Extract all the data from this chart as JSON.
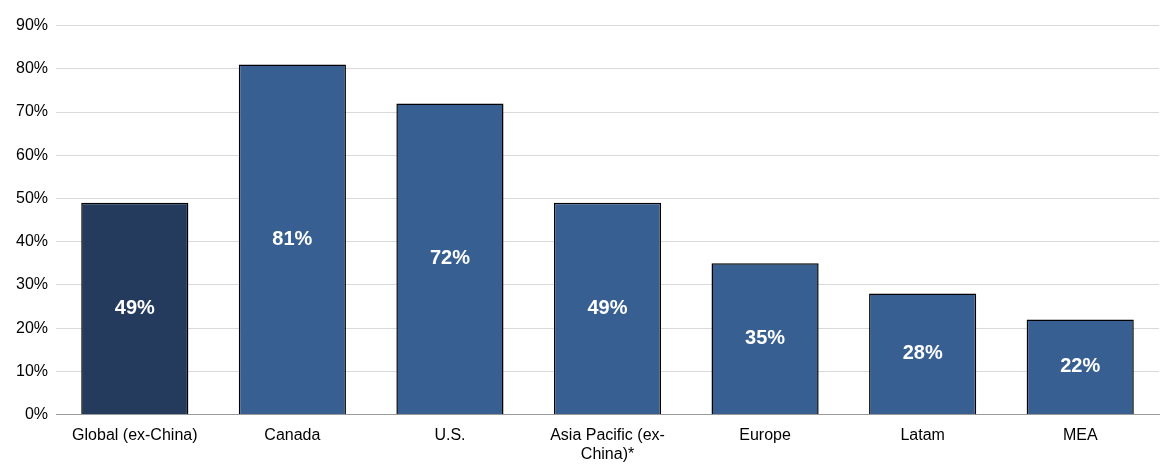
{
  "chart_data": {
    "type": "bar",
    "categories": [
      "Global (ex-China)",
      "Canada",
      "U.S.",
      "Asia Pacific (ex-China)*",
      "Europe",
      "Latam",
      "MEA"
    ],
    "values": [
      49,
      81,
      72,
      49,
      35,
      28,
      22
    ],
    "colors": [
      "#243b5e",
      "#375f91",
      "#375f91",
      "#375f91",
      "#375f91",
      "#375f91",
      "#375f91"
    ],
    "value_labels": [
      "49%",
      "81%",
      "72%",
      "49%",
      "35%",
      "28%",
      "22%"
    ],
    "ylim": [
      0,
      90
    ],
    "yticks": [
      {
        "value": 0,
        "label": "0%"
      },
      {
        "value": 10,
        "label": "10%"
      },
      {
        "value": 20,
        "label": "20%"
      },
      {
        "value": 30,
        "label": "30%"
      },
      {
        "value": 40,
        "label": "40%"
      },
      {
        "value": 50,
        "label": "50%"
      },
      {
        "value": 60,
        "label": "60%"
      },
      {
        "value": 70,
        "label": "70%"
      },
      {
        "value": 80,
        "label": "80%"
      },
      {
        "value": 90,
        "label": "90%"
      }
    ],
    "grid": "y"
  }
}
